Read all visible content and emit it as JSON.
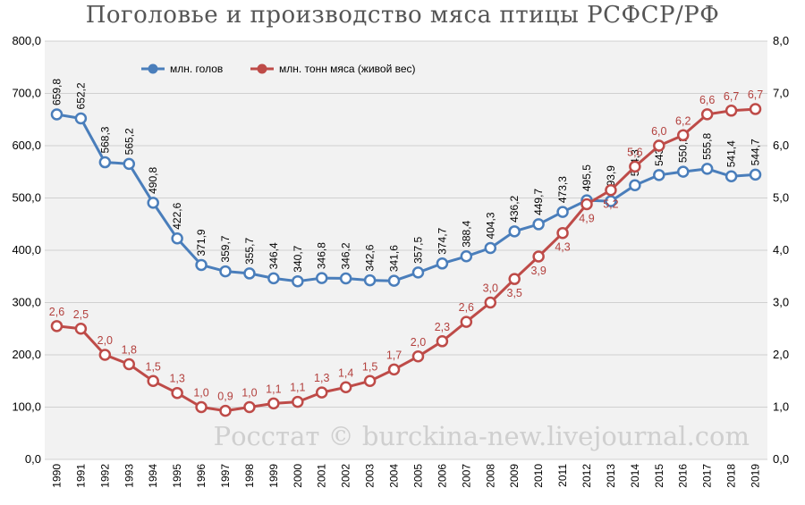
{
  "chart_data": {
    "type": "line",
    "title": "Поголовье и производство мяса птицы РСФСР/РФ",
    "watermark": "Росстат © burckina-new.livejournal.com",
    "x": [
      "1990",
      "1991",
      "1992",
      "1993",
      "1994",
      "1995",
      "1996",
      "1997",
      "1998",
      "1999",
      "2000",
      "2001",
      "2002",
      "2003",
      "2004",
      "2005",
      "2006",
      "2007",
      "2008",
      "2009",
      "2010",
      "2011",
      "2012",
      "2013",
      "2014",
      "2015",
      "2016",
      "2017",
      "2018",
      "2019"
    ],
    "left_axis": {
      "min": 0,
      "max": 800,
      "step": 100,
      "tick_labels": [
        "0,0",
        "100,0",
        "200,0",
        "300,0",
        "400,0",
        "500,0",
        "600,0",
        "700,0",
        "800,0"
      ]
    },
    "right_axis": {
      "min": 0,
      "max": 8,
      "step": 1,
      "tick_labels": [
        "0,0",
        "1,0",
        "2,0",
        "3,0",
        "4,0",
        "5,0",
        "6,0",
        "7,0",
        "8,0"
      ]
    },
    "grid": true,
    "legend_position": "top-left",
    "series": [
      {
        "name": "млн. голов",
        "axis": "left",
        "color": "#4a7ebb",
        "values": [
          659.8,
          652.2,
          568.3,
          565.2,
          490.8,
          422.6,
          371.9,
          359.7,
          355.7,
          346.4,
          340.7,
          346.8,
          346.2,
          342.6,
          341.6,
          357.5,
          374.7,
          388.4,
          404.3,
          436.2,
          449.7,
          473.3,
          495.5,
          493.9,
          524.3,
          543.9,
          550.2,
          555.8,
          541.4,
          544.7
        ],
        "labels": [
          "659,8",
          "652,2",
          "568,3",
          "565,2",
          "490,8",
          "422,6",
          "371,9",
          "359,7",
          "355,7",
          "346,4",
          "340,7",
          "346,8",
          "346,2",
          "342,6",
          "341,6",
          "357,5",
          "374,7",
          "388,4",
          "404,3",
          "436,2",
          "449,7",
          "473,3",
          "495,5",
          "493,9",
          "524,3",
          "543,9",
          "550,2",
          "555,8",
          "541,4",
          "544,7"
        ]
      },
      {
        "name": "млн. тонн мяса (живой вес)",
        "axis": "right",
        "color": "#be4b48",
        "values": [
          2.55,
          2.5,
          2.0,
          1.82,
          1.5,
          1.27,
          1.0,
          0.93,
          1.0,
          1.07,
          1.1,
          1.28,
          1.38,
          1.5,
          1.72,
          1.97,
          2.26,
          2.63,
          3.0,
          3.45,
          3.88,
          4.33,
          4.88,
          5.15,
          5.6,
          6.0,
          6.2,
          6.6,
          6.67,
          6.7
        ],
        "labels": [
          "2,6",
          "2,5",
          "2,0",
          "1,8",
          "1,5",
          "1,3",
          "1,0",
          "0,9",
          "1,0",
          "1,1",
          "1,1",
          "1,3",
          "1,4",
          "1,5",
          "1,7",
          "2,0",
          "2,3",
          "2,6",
          "3,0",
          "3,5",
          "3,9",
          "4,3",
          "4,9",
          "5,2",
          "5,6",
          "6,0",
          "6,2",
          "6,6",
          "6,7",
          "6,7"
        ]
      }
    ]
  }
}
